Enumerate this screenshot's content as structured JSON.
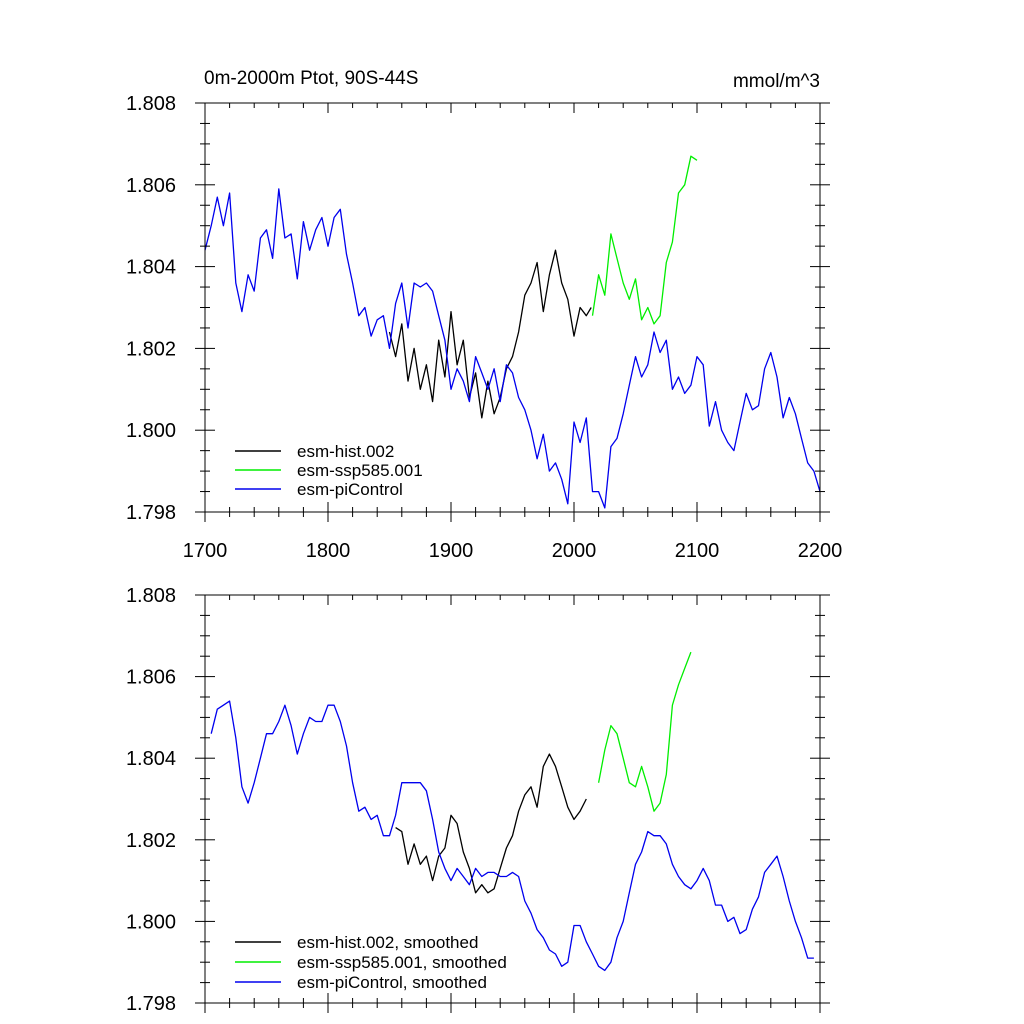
{
  "chart_data": [
    {
      "type": "line",
      "title": "0m-2000m Ptot, 90S-44S",
      "units": "mmol/m^3",
      "xlim": [
        1700,
        2200
      ],
      "ylim": [
        1.798,
        1.808
      ],
      "x_ticks": [
        "1700",
        "1800",
        "1900",
        "2000",
        "2100",
        "2200"
      ],
      "y_ticks": [
        "1.798",
        "1.800",
        "1.802",
        "1.804",
        "1.806",
        "1.808"
      ],
      "grid": false,
      "legend_position": "bottom-left",
      "series": [
        {
          "name": "esm-hist.002",
          "color": "#000000",
          "x": [
            1850,
            1855,
            1860,
            1865,
            1870,
            1875,
            1880,
            1885,
            1890,
            1895,
            1900,
            1905,
            1910,
            1915,
            1920,
            1925,
            1930,
            1935,
            1940,
            1945,
            1950,
            1955,
            1960,
            1965,
            1970,
            1975,
            1980,
            1985,
            1990,
            1995,
            2000,
            2005,
            2010,
            2014
          ],
          "y": [
            1.8024,
            1.8018,
            1.8026,
            1.8012,
            1.802,
            1.801,
            1.8016,
            1.8007,
            1.8022,
            1.8013,
            1.8029,
            1.8016,
            1.8022,
            1.8008,
            1.8014,
            1.8003,
            1.8012,
            1.8004,
            1.8008,
            1.8015,
            1.8018,
            1.8024,
            1.8033,
            1.8036,
            1.8041,
            1.8029,
            1.8038,
            1.8044,
            1.8036,
            1.8032,
            1.8023,
            1.803,
            1.8028,
            1.803
          ]
        },
        {
          "name": "esm-ssp585.001",
          "color": "#00ee00",
          "x": [
            2015,
            2020,
            2025,
            2030,
            2035,
            2040,
            2045,
            2050,
            2055,
            2060,
            2065,
            2070,
            2075,
            2080,
            2085,
            2090,
            2095,
            2100
          ],
          "y": [
            1.8028,
            1.8038,
            1.8033,
            1.8048,
            1.8042,
            1.8036,
            1.8032,
            1.8037,
            1.8027,
            1.803,
            1.8026,
            1.8028,
            1.8041,
            1.8046,
            1.8058,
            1.806,
            1.8067,
            1.8066
          ]
        },
        {
          "name": "esm-piControl",
          "color": "#0000ee",
          "x": [
            1700,
            1705,
            1710,
            1715,
            1720,
            1725,
            1730,
            1735,
            1740,
            1745,
            1750,
            1755,
            1760,
            1765,
            1770,
            1775,
            1780,
            1785,
            1790,
            1795,
            1800,
            1805,
            1810,
            1815,
            1820,
            1825,
            1830,
            1835,
            1840,
            1845,
            1850,
            1855,
            1860,
            1865,
            1870,
            1875,
            1880,
            1885,
            1890,
            1895,
            1900,
            1905,
            1910,
            1915,
            1920,
            1925,
            1930,
            1935,
            1940,
            1945,
            1950,
            1955,
            1960,
            1965,
            1970,
            1975,
            1980,
            1985,
            1990,
            1995,
            2000,
            2005,
            2010,
            2015,
            2020,
            2025,
            2030,
            2035,
            2040,
            2045,
            2050,
            2055,
            2060,
            2065,
            2070,
            2075,
            2080,
            2085,
            2090,
            2095,
            2100,
            2105,
            2110,
            2115,
            2120,
            2125,
            2130,
            2135,
            2140,
            2145,
            2150,
            2155,
            2160,
            2165,
            2170,
            2175,
            2180,
            2185,
            2190,
            2195,
            2200
          ],
          "y": [
            1.8044,
            1.805,
            1.8057,
            1.805,
            1.8058,
            1.8036,
            1.8029,
            1.8038,
            1.8034,
            1.8047,
            1.8049,
            1.8042,
            1.8059,
            1.8047,
            1.8048,
            1.8037,
            1.8051,
            1.8044,
            1.8049,
            1.8052,
            1.8045,
            1.8052,
            1.8054,
            1.8043,
            1.8036,
            1.8028,
            1.803,
            1.8023,
            1.8027,
            1.8028,
            1.802,
            1.8031,
            1.8036,
            1.8025,
            1.8036,
            1.8035,
            1.8036,
            1.8034,
            1.8028,
            1.8022,
            1.801,
            1.8015,
            1.8012,
            1.8007,
            1.8018,
            1.8014,
            1.801,
            1.8015,
            1.8007,
            1.8016,
            1.8014,
            1.8008,
            1.8005,
            1.8,
            1.7993,
            1.7999,
            1.799,
            1.7992,
            1.7988,
            1.7982,
            1.8002,
            1.7997,
            1.8003,
            1.7985,
            1.7985,
            1.7981,
            1.7996,
            1.7998,
            1.8004,
            1.8011,
            1.8018,
            1.8013,
            1.8016,
            1.8024,
            1.8019,
            1.8022,
            1.801,
            1.8013,
            1.8009,
            1.8011,
            1.8018,
            1.8016,
            1.8001,
            1.8007,
            1.8,
            1.7997,
            1.7995,
            1.8002,
            1.8009,
            1.8005,
            1.8006,
            1.8015,
            1.8019,
            1.8013,
            1.8003,
            1.8008,
            1.8004,
            1.7998,
            1.7992,
            1.799,
            1.7985
          ]
        }
      ]
    },
    {
      "type": "line",
      "xlim": [
        1700,
        2200
      ],
      "ylim": [
        1.798,
        1.808
      ],
      "y_ticks": [
        "1.798",
        "1.800",
        "1.802",
        "1.804",
        "1.806",
        "1.808"
      ],
      "grid": false,
      "legend_position": "bottom-left",
      "series": [
        {
          "name": "esm-hist.002, smoothed",
          "color": "#000000",
          "x": [
            1855,
            1860,
            1865,
            1870,
            1875,
            1880,
            1885,
            1890,
            1895,
            1900,
            1905,
            1910,
            1915,
            1920,
            1925,
            1930,
            1935,
            1940,
            1945,
            1950,
            1955,
            1960,
            1965,
            1970,
            1975,
            1980,
            1985,
            1990,
            1995,
            2000,
            2005,
            2010
          ],
          "y": [
            1.8023,
            1.8022,
            1.8014,
            1.8019,
            1.8014,
            1.8016,
            1.801,
            1.8016,
            1.8018,
            1.8026,
            1.8024,
            1.8017,
            1.8013,
            1.8007,
            1.8009,
            1.8007,
            1.8008,
            1.8013,
            1.8018,
            1.8021,
            1.8027,
            1.8031,
            1.8033,
            1.8028,
            1.8038,
            1.8041,
            1.8038,
            1.8033,
            1.8028,
            1.8025,
            1.8027,
            1.803
          ]
        },
        {
          "name": "esm-ssp585.001, smoothed",
          "color": "#00ee00",
          "x": [
            2020,
            2025,
            2030,
            2035,
            2040,
            2045,
            2050,
            2055,
            2060,
            2065,
            2070,
            2075,
            2080,
            2085,
            2090,
            2095
          ],
          "y": [
            1.8034,
            1.8042,
            1.8048,
            1.8046,
            1.804,
            1.8034,
            1.8033,
            1.8038,
            1.8033,
            1.8027,
            1.8029,
            1.8036,
            1.8053,
            1.8058,
            1.8062,
            1.8066
          ]
        },
        {
          "name": "esm-piControl, smoothed",
          "color": "#0000ee",
          "x": [
            1705,
            1710,
            1715,
            1720,
            1725,
            1730,
            1735,
            1740,
            1745,
            1750,
            1755,
            1760,
            1765,
            1770,
            1775,
            1780,
            1785,
            1790,
            1795,
            1800,
            1805,
            1810,
            1815,
            1820,
            1825,
            1830,
            1835,
            1840,
            1845,
            1850,
            1855,
            1860,
            1865,
            1870,
            1875,
            1880,
            1885,
            1890,
            1895,
            1900,
            1905,
            1910,
            1915,
            1920,
            1925,
            1930,
            1935,
            1940,
            1945,
            1950,
            1955,
            1960,
            1965,
            1970,
            1975,
            1980,
            1985,
            1990,
            1995,
            2000,
            2005,
            2010,
            2015,
            2020,
            2025,
            2030,
            2035,
            2040,
            2045,
            2050,
            2055,
            2060,
            2065,
            2070,
            2075,
            2080,
            2085,
            2090,
            2095,
            2100,
            2105,
            2110,
            2115,
            2120,
            2125,
            2130,
            2135,
            2140,
            2145,
            2150,
            2155,
            2160,
            2165,
            2170,
            2175,
            2180,
            2185,
            2190,
            2195
          ],
          "y": [
            1.8046,
            1.8052,
            1.8053,
            1.8054,
            1.8045,
            1.8033,
            1.8029,
            1.8034,
            1.804,
            1.8046,
            1.8046,
            1.8049,
            1.8053,
            1.8048,
            1.8041,
            1.8046,
            1.805,
            1.8049,
            1.8049,
            1.8053,
            1.8053,
            1.8049,
            1.8043,
            1.8034,
            1.8027,
            1.8028,
            1.8025,
            1.8026,
            1.8021,
            1.8021,
            1.8026,
            1.8034,
            1.8034,
            1.8034,
            1.8034,
            1.8032,
            1.8025,
            1.8017,
            1.8013,
            1.801,
            1.8013,
            1.8011,
            1.8009,
            1.8013,
            1.8011,
            1.8012,
            1.8012,
            1.8011,
            1.8011,
            1.8012,
            1.8011,
            1.8005,
            1.8002,
            1.7998,
            1.7996,
            1.7993,
            1.7992,
            1.7989,
            1.799,
            1.7999,
            1.7999,
            1.7995,
            1.7992,
            1.7989,
            1.7988,
            1.799,
            1.7996,
            1.8,
            1.8007,
            1.8014,
            1.8017,
            1.8022,
            1.8021,
            1.8021,
            1.8019,
            1.8014,
            1.8011,
            1.8009,
            1.8008,
            1.801,
            1.8013,
            1.801,
            1.8004,
            1.8004,
            1.8,
            1.8001,
            1.7997,
            1.7998,
            1.8003,
            1.8006,
            1.8012,
            1.8014,
            1.8016,
            1.8011,
            1.8005,
            1.8,
            1.7996,
            1.7991,
            1.7991
          ]
        }
      ]
    }
  ]
}
